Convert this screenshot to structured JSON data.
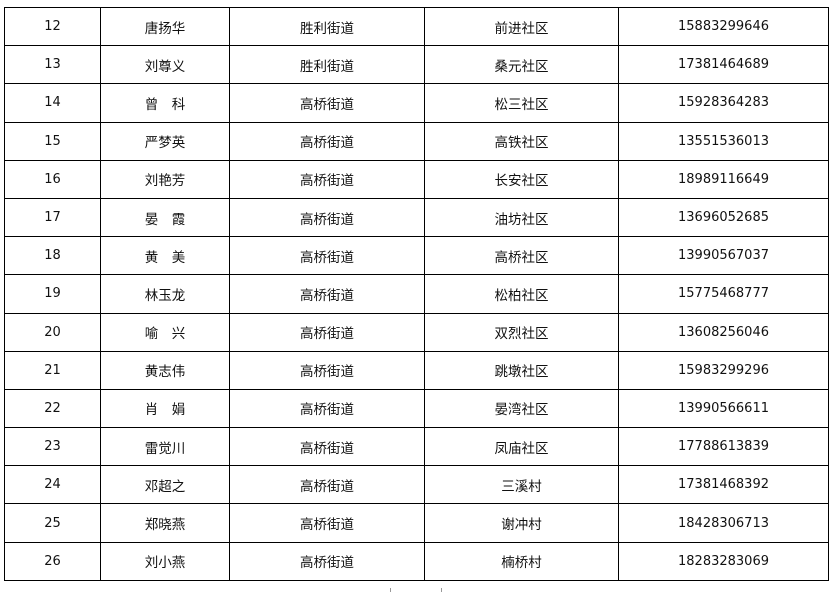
{
  "table": {
    "rows": [
      {
        "no": "12",
        "name": "唐扬华",
        "street": "胜利街道",
        "community": "前进社区",
        "phone": "15883299646"
      },
      {
        "no": "13",
        "name": "刘尊义",
        "street": "胜利街道",
        "community": "桑元社区",
        "phone": "17381464689"
      },
      {
        "no": "14",
        "name": "曾　科",
        "street": "高桥街道",
        "community": "松三社区",
        "phone": "15928364283"
      },
      {
        "no": "15",
        "name": "严梦英",
        "street": "高桥街道",
        "community": "高铁社区",
        "phone": "13551536013"
      },
      {
        "no": "16",
        "name": "刘艳芳",
        "street": "高桥街道",
        "community": "长安社区",
        "phone": "18989116649"
      },
      {
        "no": "17",
        "name": "晏　霞",
        "street": "高桥街道",
        "community": "油坊社区",
        "phone": "13696052685"
      },
      {
        "no": "18",
        "name": "黄　美",
        "street": "高桥街道",
        "community": "高桥社区",
        "phone": "13990567037"
      },
      {
        "no": "19",
        "name": "林玉龙",
        "street": "高桥街道",
        "community": "松柏社区",
        "phone": "15775468777"
      },
      {
        "no": "20",
        "name": "喻　兴",
        "street": "高桥街道",
        "community": "双烈社区",
        "phone": "13608256046"
      },
      {
        "no": "21",
        "name": "黄志伟",
        "street": "高桥街道",
        "community": "跳墩社区",
        "phone": "15983299296"
      },
      {
        "no": "22",
        "name": "肖　娟",
        "street": "高桥街道",
        "community": "晏湾社区",
        "phone": "13990566611"
      },
      {
        "no": "23",
        "name": "雷觉川",
        "street": "高桥街道",
        "community": "凤庙社区",
        "phone": "17788613839"
      },
      {
        "no": "24",
        "name": "邓超之",
        "street": "高桥街道",
        "community": "三溪村",
        "phone": "17381468392"
      },
      {
        "no": "25",
        "name": "郑晓燕",
        "street": "高桥街道",
        "community": "谢冲村",
        "phone": "18428306713"
      },
      {
        "no": "26",
        "name": "刘小燕",
        "street": "高桥街道",
        "community": "楠桥村",
        "phone": "18283283069"
      }
    ]
  }
}
